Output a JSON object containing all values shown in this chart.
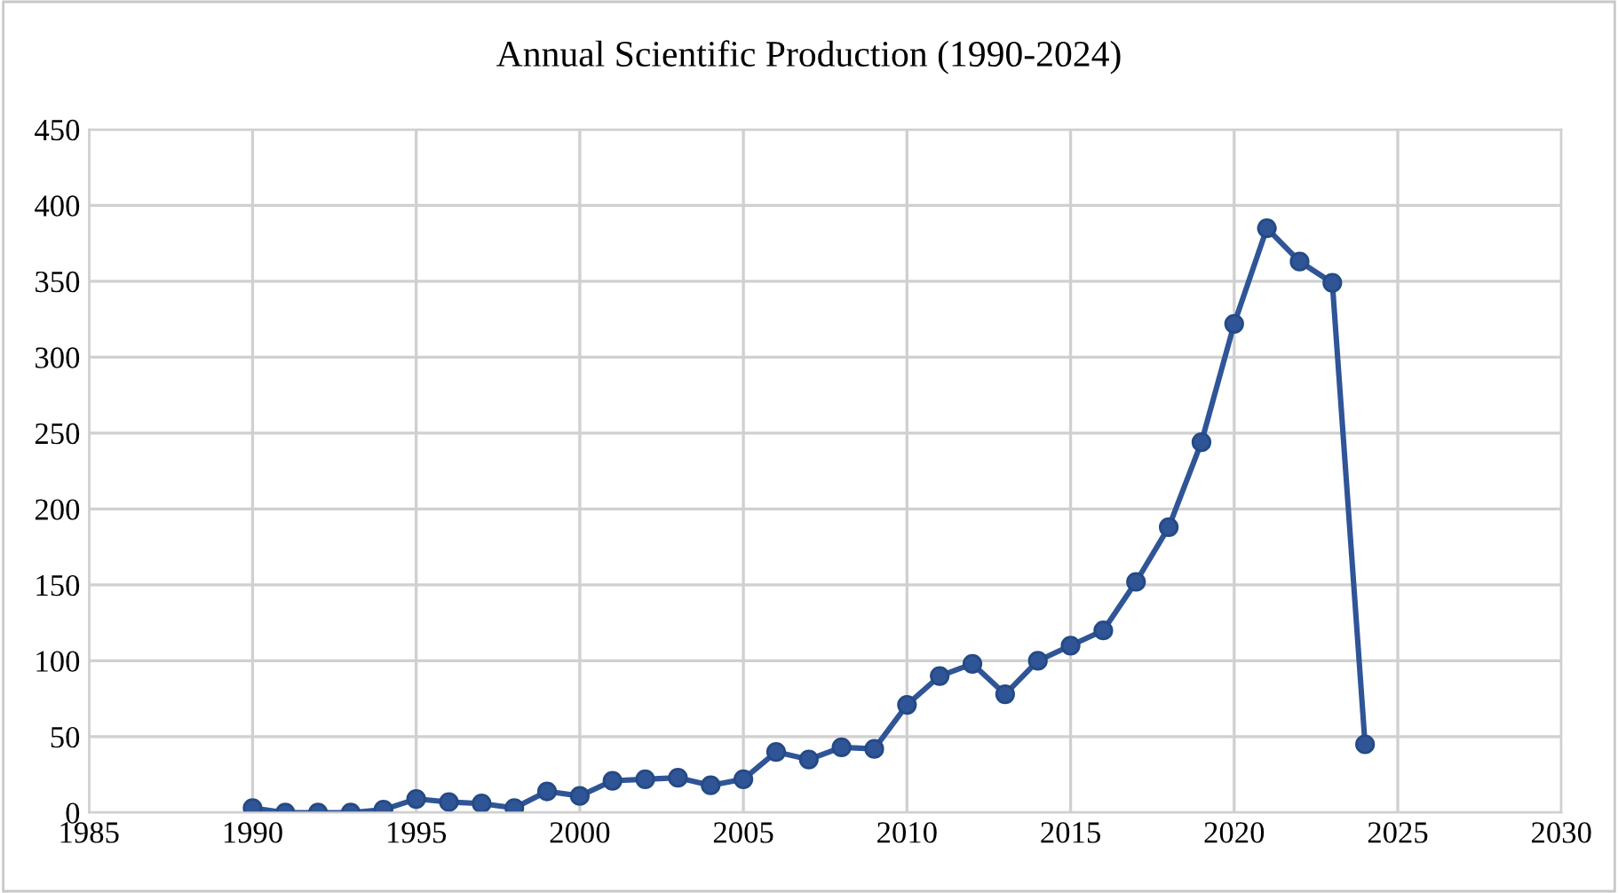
{
  "chart_data": {
    "type": "line",
    "title": "Annual Scientific Production (1990-2024)",
    "x": [
      1990,
      1991,
      1992,
      1993,
      1994,
      1995,
      1996,
      1997,
      1998,
      1999,
      2000,
      2001,
      2002,
      2003,
      2004,
      2005,
      2006,
      2007,
      2008,
      2009,
      2010,
      2011,
      2012,
      2013,
      2014,
      2015,
      2016,
      2017,
      2018,
      2019,
      2020,
      2021,
      2022,
      2023,
      2024
    ],
    "series": [
      {
        "color": "#2f5597",
        "values": [
          3,
          0,
          0,
          0,
          2,
          9,
          7,
          6,
          3,
          14,
          11,
          21,
          22,
          23,
          18,
          22,
          40,
          35,
          43,
          42,
          71,
          90,
          98,
          78,
          100,
          110,
          120,
          152,
          188,
          244,
          322,
          385,
          363,
          349,
          45
        ]
      }
    ],
    "xlim": [
      1985,
      2030
    ],
    "xticks": [
      1985,
      1990,
      1995,
      2000,
      2005,
      2010,
      2015,
      2020,
      2025,
      2030
    ],
    "ylim": [
      0,
      450
    ],
    "yticks": [
      0,
      50,
      100,
      150,
      200,
      250,
      300,
      350,
      400,
      450
    ],
    "grid": true,
    "marker": "circle",
    "line_style": "solid",
    "legend": false
  }
}
